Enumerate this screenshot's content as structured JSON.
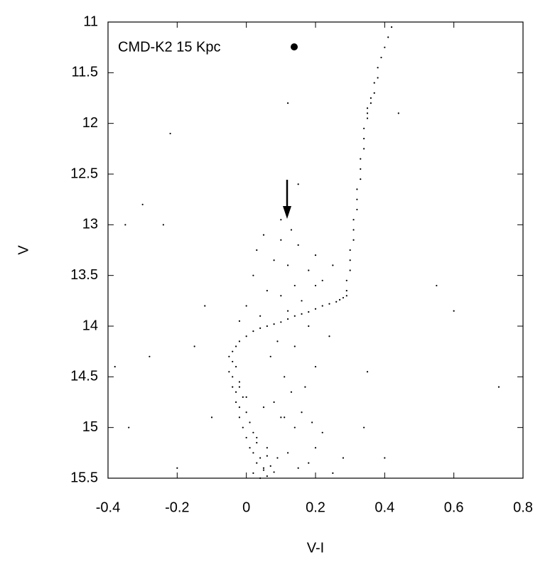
{
  "chart_data": {
    "type": "scatter",
    "x_label": "V-I",
    "y_label": "V",
    "xlim": [
      -0.4,
      0.8
    ],
    "xticks": [
      -0.4,
      -0.2,
      0,
      0.2,
      0.4,
      0.6,
      0.8
    ],
    "ylim": [
      15.5,
      11
    ],
    "yticks": [
      11,
      11.5,
      12,
      12.5,
      13,
      13.5,
      14,
      14.5,
      15,
      15.5
    ],
    "legend": "upper left",
    "series": [
      {
        "name": "CMD-K2 15 Kpc",
        "color": "#000000",
        "x": [
          -0.05,
          -0.04,
          -0.03,
          -0.05,
          -0.04,
          -0.02,
          -0.04,
          -0.03,
          -0.01,
          -0.03,
          -0.02,
          0.0,
          -0.02,
          0.01,
          -0.01,
          0.02,
          0.0,
          0.03,
          0.01,
          0.02,
          0.04,
          0.03,
          0.05,
          0.02,
          0.04,
          0.06,
          0.05,
          0.07,
          0.06,
          0.08,
          0.03,
          0.06,
          0.09,
          0.12,
          0.15,
          0.1,
          0.14,
          0.18,
          0.2,
          0.25,
          -0.02,
          0.0,
          0.05,
          0.08,
          0.11,
          0.16,
          0.22,
          0.28,
          0.13,
          0.19,
          -0.04,
          -0.03,
          -0.02,
          0.0,
          0.02,
          0.04,
          0.06,
          0.08,
          0.1,
          0.12,
          0.14,
          0.16,
          0.18,
          0.2,
          0.22,
          0.24,
          0.26,
          0.27,
          0.28,
          0.29,
          0.29,
          0.29,
          0.3,
          0.3,
          0.3,
          0.31,
          0.31,
          0.31,
          0.32,
          0.32,
          0.32,
          0.33,
          0.33,
          0.33,
          0.34,
          0.34,
          0.34,
          0.35,
          0.35,
          0.35,
          0.36,
          0.36,
          0.37,
          0.37,
          0.38,
          0.38,
          0.39,
          0.4,
          0.41,
          0.42,
          0.05,
          0.1,
          0.15,
          0.2,
          0.08,
          0.12,
          0.18,
          0.02,
          0.22,
          0.14,
          0.06,
          0.1,
          0.16,
          0.2,
          0.0,
          0.12,
          0.04,
          0.18,
          0.24,
          0.09,
          -0.02,
          0.14,
          0.07,
          0.2,
          0.11,
          0.17,
          0.03,
          0.25,
          0.13,
          0.1,
          -0.22,
          -0.35,
          -0.3,
          -0.24,
          -0.38,
          -0.34,
          -0.12,
          -0.28,
          -0.2,
          0.15,
          0.44,
          0.55,
          0.6,
          0.73,
          0.35,
          0.4,
          -0.1,
          -0.15,
          0.34,
          0.12
        ],
        "values": [
          14.3,
          14.35,
          14.4,
          14.45,
          14.5,
          14.55,
          14.6,
          14.65,
          14.7,
          14.75,
          14.8,
          14.85,
          14.9,
          14.95,
          15.0,
          15.05,
          15.1,
          15.15,
          15.2,
          15.25,
          15.3,
          15.35,
          15.4,
          15.45,
          15.5,
          15.28,
          15.42,
          15.38,
          15.48,
          15.44,
          15.1,
          15.2,
          15.3,
          15.25,
          15.4,
          14.9,
          15.0,
          15.35,
          15.2,
          15.45,
          14.6,
          14.7,
          14.8,
          14.75,
          14.9,
          14.85,
          15.05,
          15.3,
          14.65,
          14.95,
          14.25,
          14.2,
          14.15,
          14.1,
          14.05,
          14.02,
          14.0,
          13.98,
          13.96,
          13.93,
          13.9,
          13.88,
          13.86,
          13.83,
          13.8,
          13.78,
          13.76,
          13.74,
          13.72,
          13.7,
          13.65,
          13.55,
          13.45,
          13.35,
          13.25,
          13.15,
          13.05,
          12.95,
          12.85,
          12.75,
          12.65,
          12.55,
          12.45,
          12.35,
          12.25,
          12.15,
          12.05,
          11.95,
          11.9,
          11.85,
          11.8,
          11.75,
          11.7,
          11.6,
          11.55,
          11.45,
          11.35,
          11.25,
          11.15,
          11.05,
          13.1,
          13.15,
          13.2,
          13.3,
          13.35,
          13.4,
          13.45,
          13.5,
          13.55,
          13.6,
          13.65,
          13.7,
          13.75,
          13.6,
          13.8,
          13.85,
          13.9,
          14.0,
          14.1,
          14.15,
          13.95,
          14.2,
          14.3,
          14.4,
          14.5,
          14.6,
          13.25,
          13.4,
          13.05,
          12.95,
          12.1,
          13.0,
          12.8,
          13.0,
          14.4,
          15.0,
          13.8,
          14.3,
          15.4,
          12.6,
          11.9,
          13.6,
          13.85,
          14.6,
          14.45,
          15.3,
          14.9,
          14.2,
          15.0,
          11.8
        ]
      }
    ]
  }
}
